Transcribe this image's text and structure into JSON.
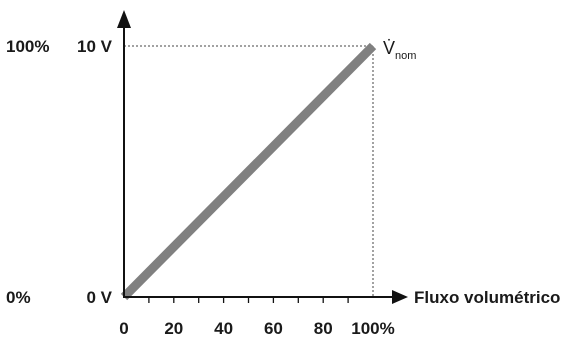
{
  "chart_data": {
    "type": "line",
    "title": "",
    "xlabel": "Fluxo volumétrico",
    "ylabel": "",
    "xlim": [
      0,
      100
    ],
    "ylim": [
      0,
      10
    ],
    "x_ticks": [
      0,
      20,
      40,
      60,
      80,
      100
    ],
    "x_tick_labels": [
      "0",
      "20",
      "40",
      "60",
      "80",
      "100%"
    ],
    "x_minor_step": 10,
    "y_tick_labels": [
      {
        "value": 0,
        "left": "0%",
        "right": "0 V"
      },
      {
        "value": 10,
        "left": "100%",
        "right": "10 V"
      }
    ],
    "series": [
      {
        "x": [
          0,
          100
        ],
        "y": [
          0,
          10
        ],
        "color": "#808080"
      }
    ],
    "annotation": {
      "main": "V̇",
      "sub": "nom"
    },
    "reference_lines": {
      "x": 100,
      "y": 10,
      "style": "dotted"
    },
    "grid": false
  }
}
